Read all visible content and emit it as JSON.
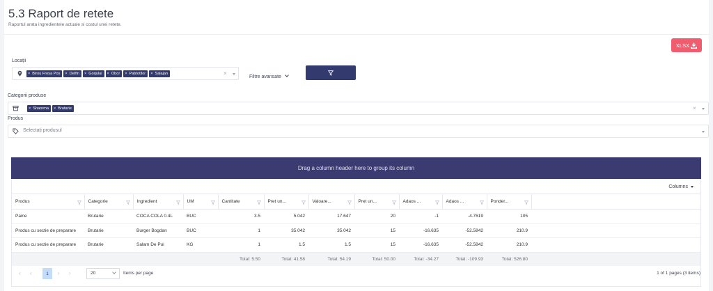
{
  "header": {
    "title": "5.3 Raport de retete",
    "subtitle": "Raportul arata ingredientele actuale si costul unei retete."
  },
  "export": {
    "label": "XLSX",
    "icon": "download-icon"
  },
  "locations": {
    "label": "Locații",
    "icon": "map-pin-icon",
    "tags": [
      "Birou Freya Pos",
      "Delfin",
      "Gorjului",
      "Obor",
      "Patriotilor",
      "Salajan"
    ]
  },
  "advanced_filters": {
    "label": "Filtre avansate"
  },
  "filter_button": {
    "icon": "filter-icon"
  },
  "categories": {
    "label": "Categorii produse",
    "icon": "box-icon",
    "tags": [
      "Shaorma",
      "Brutarie"
    ]
  },
  "product": {
    "label": "Produs",
    "icon": "tag-icon",
    "placeholder": "Selectați produsul"
  },
  "grid": {
    "group_hint": "Drag a column header here to group its column",
    "columns_label": "Columns",
    "headers": [
      "Produs",
      "Categorie",
      "Ingredient",
      "UM",
      "Cantitate",
      "Pret un...",
      "Valoare...",
      "Pret un...",
      "Adaos ...",
      "Adaos ...",
      "Ponder..."
    ],
    "rows": [
      [
        "Paine",
        "Brutarie",
        "COCA COLA 0.4L",
        "BUC",
        "3.5",
        "5.042",
        "17.647",
        "20",
        "-1",
        "-4.7619",
        "105"
      ],
      [
        "Produs cu sectie de preparare",
        "Brutarie",
        "Burger Bogdan",
        "BUC",
        "1",
        "35.042",
        "35.042",
        "15",
        "-16.635",
        "-52.5842",
        "210.9"
      ],
      [
        "Produs cu sectie de preparare",
        "Brutarie",
        "Salam De Pui",
        "KG",
        "1",
        "1.5",
        "1.5",
        "15",
        "-16.635",
        "-52.5842",
        "210.9"
      ]
    ],
    "totals": [
      "",
      "",
      "",
      "",
      "Total: 5.50",
      "Total: 41.58",
      "Total: 54.19",
      "Total: 50.00",
      "Total: -34.27",
      "Total: -109.93",
      "Total: 526.80"
    ]
  },
  "pager": {
    "current_page": "1",
    "page_size": "20",
    "items_per_page_label": "Items per page",
    "info": "1 of 1 pages (3 items)"
  },
  "colors": {
    "accent": "#333a6d",
    "group_bar": "#3c3b71",
    "export": "#ef5d6e",
    "active_page": "#c3dcf7"
  }
}
